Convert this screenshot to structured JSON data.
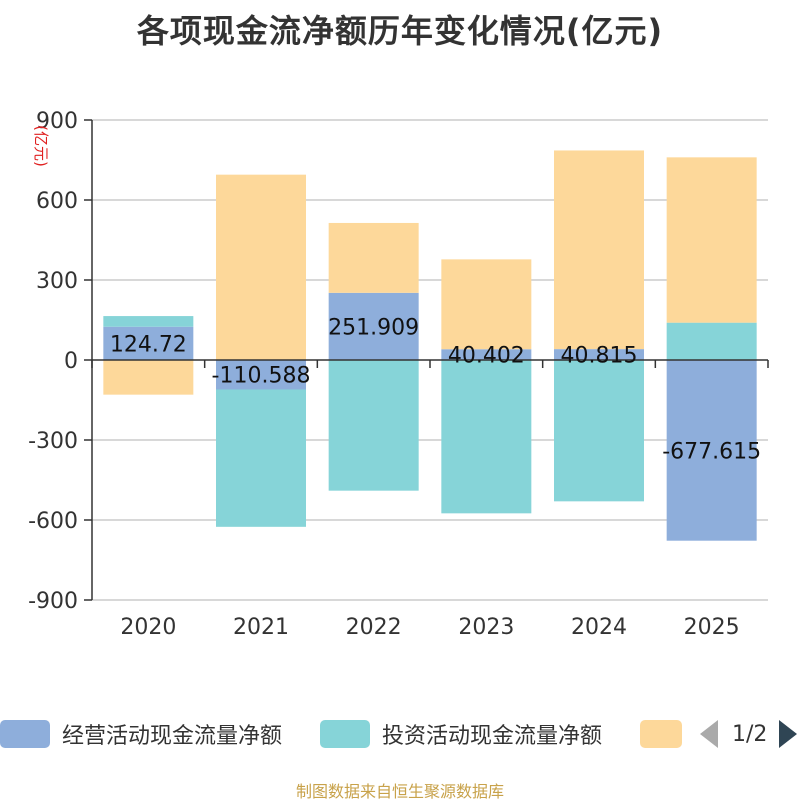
{
  "title": "各项现金流净额历年变化情况(亿元)",
  "source": "制图数据来自恒生聚源数据库",
  "legend": {
    "items": [
      {
        "label": "经营活动现金流量净额",
        "color": "#8eaedb"
      },
      {
        "label": "投资活动现金流量净额",
        "color": "#86d4d8"
      },
      {
        "label": "",
        "color": "#fdd89a"
      }
    ],
    "pager_text": "1/2"
  },
  "chart_data": {
    "type": "bar",
    "stacked": true,
    "ylabel": "(亿元)",
    "ylim": [
      -900,
      900
    ],
    "yticks": [
      -900,
      -600,
      -300,
      0,
      300,
      600,
      900
    ],
    "categories": [
      "2020",
      "2021",
      "2022",
      "2023",
      "2024",
      "2025"
    ],
    "series": [
      {
        "name": "经营活动现金流量净额",
        "color": "#8eaedb",
        "values": [
          124.72,
          -110.588,
          251.909,
          40.402,
          40.815,
          -677.615
        ],
        "labels": [
          "124.72",
          "-110.588",
          "251.909",
          "40.402",
          "40.815",
          "-677.615"
        ]
      },
      {
        "name": "投资活动现金流量净额",
        "color": "#86d4d8",
        "values": [
          40,
          -515,
          -490,
          -575,
          -530,
          140
        ]
      },
      {
        "color": "#fdd89a",
        "values": [
          -130,
          695,
          262,
          337,
          745,
          620
        ]
      }
    ],
    "grid": true
  }
}
